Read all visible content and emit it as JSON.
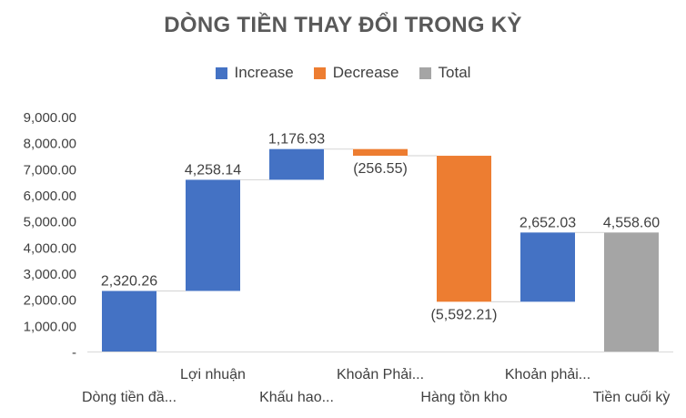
{
  "chart_data": {
    "type": "waterfall",
    "title": "DÒNG TIỀN THAY ĐỔI TRONG KỲ",
    "legend": [
      {
        "key": "increase",
        "label": "Increase",
        "color": "#4472C4"
      },
      {
        "key": "decrease",
        "label": "Decrease",
        "color": "#ED7D31"
      },
      {
        "key": "total",
        "label": "Total",
        "color": "#A5A5A5"
      }
    ],
    "legend_position": "top",
    "categories": [
      "Dòng tiền đầ...",
      "Lợi nhuận",
      "Khấu hao...",
      "Khoản Phải...",
      "Hàng tồn kho",
      "Khoản phải...",
      "Tiền cuối kỳ"
    ],
    "values": [
      2320.26,
      4258.14,
      1176.93,
      -256.55,
      -5592.21,
      2652.03,
      4558.6
    ],
    "kinds": [
      "increase",
      "increase",
      "increase",
      "decrease",
      "decrease",
      "increase",
      "total"
    ],
    "data_labels": [
      "2,320.26",
      "4,258.14",
      "1,176.93",
      "(256.55)",
      "(5,592.21)",
      "2,652.03",
      "4,558.60"
    ],
    "ylim": [
      0,
      9000
    ],
    "y_ticks": [
      0,
      1000,
      2000,
      3000,
      4000,
      5000,
      6000,
      7000,
      8000,
      9000
    ],
    "y_tick_labels": [
      "-",
      "1,000.00",
      "2,000.00",
      "3,000.00",
      "4,000.00",
      "5,000.00",
      "6,000.00",
      "7,000.00",
      "8,000.00",
      "9,000.00"
    ],
    "grid": false
  }
}
